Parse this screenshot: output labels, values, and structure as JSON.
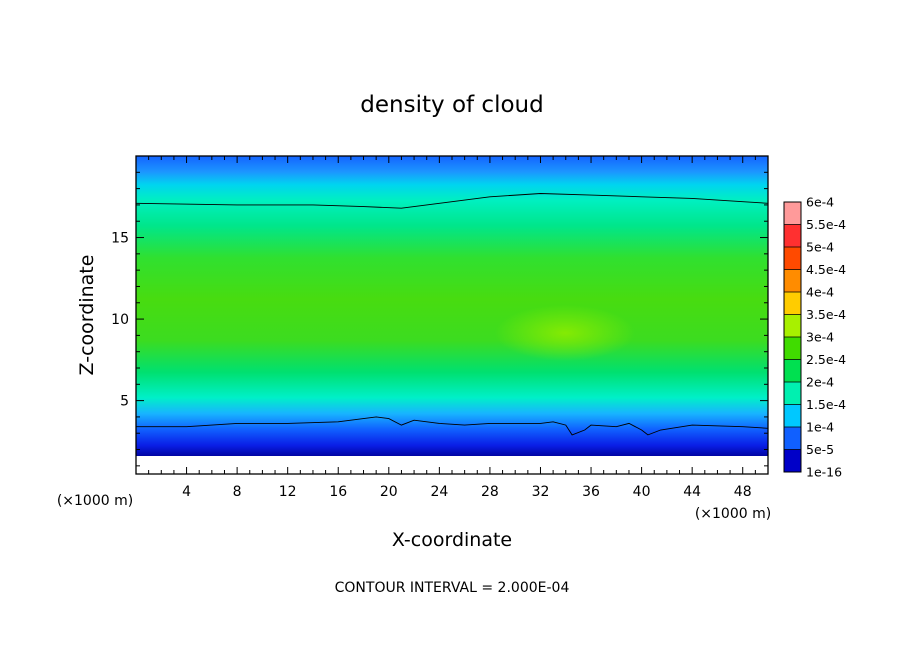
{
  "chart_data": {
    "type": "heatmap",
    "title": "density of cloud",
    "xlabel": "X-coordinate",
    "ylabel": "Z-coordinate",
    "x_unit": "(×1000 m)",
    "y_unit": "(×1000 m)",
    "xlim": [
      0,
      50
    ],
    "ylim": [
      0.5,
      20
    ],
    "x_ticks": [
      4,
      8,
      12,
      16,
      20,
      24,
      28,
      32,
      36,
      40,
      44,
      48
    ],
    "y_ticks": [
      5,
      10,
      15
    ],
    "contour_interval_text": "CONTOUR INTERVAL = 2.000E-04",
    "colorbar": {
      "labels": [
        "6e-4",
        "5.5e-4",
        "5e-4",
        "4.5e-4",
        "4e-4",
        "3.5e-4",
        "3e-4",
        "2.5e-4",
        "2e-4",
        "1.5e-4",
        "1e-4",
        "5e-5",
        "1e-16"
      ],
      "colors": [
        "#ff9a9a",
        "#ff3030",
        "#ff4a00",
        "#ff8c00",
        "#ffcc00",
        "#a8f000",
        "#40dc00",
        "#00e050",
        "#00f0b0",
        "#00c8ff",
        "#1060ff",
        "#0000c8",
        "#7000b0"
      ]
    },
    "contour_lines": [
      {
        "level": 0.0002,
        "points": [
          [
            0,
            17.1
          ],
          [
            8,
            17.0
          ],
          [
            14,
            17.0
          ],
          [
            18,
            16.9
          ],
          [
            21,
            16.8
          ],
          [
            24,
            17.1
          ],
          [
            28,
            17.5
          ],
          [
            32,
            17.7
          ],
          [
            36,
            17.6
          ],
          [
            40,
            17.5
          ],
          [
            44,
            17.4
          ],
          [
            48,
            17.2
          ],
          [
            50,
            17.1
          ]
        ]
      },
      {
        "level": 0.0002,
        "points": [
          [
            0,
            3.4
          ],
          [
            4,
            3.4
          ],
          [
            8,
            3.6
          ],
          [
            12,
            3.6
          ],
          [
            16,
            3.7
          ],
          [
            18,
            3.9
          ],
          [
            19,
            4.0
          ],
          [
            20,
            3.9
          ],
          [
            21,
            3.5
          ],
          [
            22,
            3.8
          ],
          [
            24,
            3.6
          ],
          [
            26,
            3.5
          ],
          [
            28,
            3.6
          ],
          [
            32,
            3.6
          ],
          [
            33,
            3.7
          ],
          [
            34,
            3.5
          ],
          [
            34.5,
            2.9
          ],
          [
            35.5,
            3.2
          ],
          [
            36,
            3.5
          ],
          [
            38,
            3.4
          ],
          [
            39,
            3.6
          ],
          [
            40,
            3.2
          ],
          [
            40.5,
            2.9
          ],
          [
            41.5,
            3.2
          ],
          [
            44,
            3.5
          ],
          [
            48,
            3.4
          ],
          [
            50,
            3.3
          ]
        ]
      }
    ]
  }
}
